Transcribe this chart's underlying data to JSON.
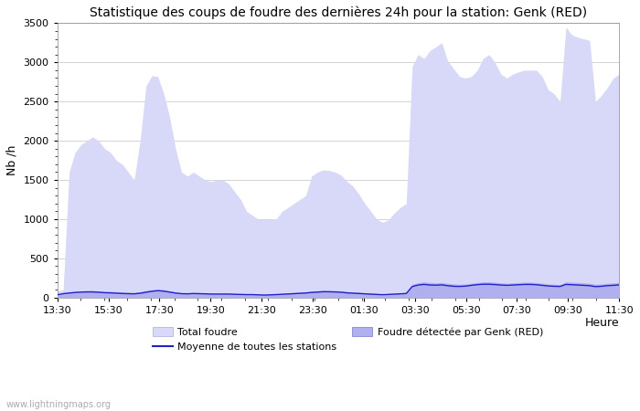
{
  "title": "Statistique des coups de foudre des dernières 24h pour la station: Genk (RED)",
  "ylabel": "Nb /h",
  "xlabel": "Heure",
  "watermark": "www.lightningmaps.org",
  "ylim": [
    0,
    3500
  ],
  "yticks": [
    0,
    500,
    1000,
    1500,
    2000,
    2500,
    3000,
    3500
  ],
  "xtick_labels": [
    "13:30",
    "15:30",
    "17:30",
    "19:30",
    "21:30",
    "23:30",
    "01:30",
    "03:30",
    "05:30",
    "07:30",
    "09:30",
    "11:30"
  ],
  "total_foudre_color": "#d8d8f8",
  "genk_color": "#b0b0ee",
  "moyenne_color": "#2222cc",
  "background_color": "#ffffff",
  "grid_color": "#cccccc",
  "title_fontsize": 10,
  "tick_fontsize": 8,
  "label_fontsize": 9,
  "x_values": [
    0,
    1,
    2,
    3,
    4,
    5,
    6,
    7,
    8,
    9,
    10,
    11,
    12,
    13,
    14,
    15,
    16,
    17,
    18,
    19,
    20,
    21,
    22,
    23,
    24,
    25,
    26,
    27,
    28,
    29,
    30,
    31,
    32,
    33,
    34,
    35,
    36,
    37,
    38,
    39,
    40,
    41,
    42,
    43,
    44,
    45,
    46,
    47,
    48,
    49,
    50,
    51,
    52,
    53,
    54,
    55,
    56,
    57,
    58,
    59,
    60,
    61,
    62,
    63,
    64,
    65,
    66,
    67,
    68,
    69,
    70,
    71,
    72,
    73,
    74,
    75,
    76,
    77,
    78,
    79,
    80,
    81,
    82,
    83,
    84,
    85,
    86,
    87,
    88,
    89,
    90,
    91,
    92,
    93,
    94,
    95
  ],
  "total_foudre_y": [
    80,
    100,
    1600,
    1850,
    1950,
    2000,
    2050,
    2000,
    1900,
    1850,
    1750,
    1700,
    1600,
    1500,
    2000,
    2700,
    2830,
    2820,
    2600,
    2300,
    1900,
    1600,
    1550,
    1600,
    1550,
    1500,
    1480,
    1500,
    1500,
    1450,
    1350,
    1250,
    1100,
    1050,
    1000,
    990,
    1000,
    1000,
    1100,
    1150,
    1200,
    1250,
    1300,
    1550,
    1600,
    1630,
    1620,
    1600,
    1560,
    1480,
    1420,
    1320,
    1200,
    1100,
    1000,
    960,
    990,
    1080,
    1150,
    1200,
    2950,
    3100,
    3050,
    3150,
    3200,
    3250,
    3020,
    2920,
    2820,
    2800,
    2820,
    2900,
    3050,
    3100,
    3000,
    2850,
    2800,
    2850,
    2880,
    2900,
    2900,
    2900,
    2820,
    2650,
    2600,
    2500,
    3450,
    3350,
    3320,
    3300,
    3280,
    2500,
    2580,
    2680,
    2800,
    2850
  ],
  "genk_y": [
    30,
    50,
    70,
    80,
    85,
    90,
    90,
    85,
    80,
    80,
    75,
    70,
    65,
    65,
    75,
    90,
    100,
    105,
    100,
    85,
    70,
    60,
    58,
    62,
    60,
    58,
    55,
    55,
    55,
    55,
    52,
    50,
    48,
    48,
    45,
    42,
    45,
    48,
    55,
    60,
    65,
    70,
    75,
    82,
    87,
    92,
    90,
    88,
    85,
    77,
    72,
    68,
    62,
    57,
    52,
    48,
    50,
    55,
    60,
    65,
    170,
    190,
    200,
    192,
    188,
    192,
    182,
    174,
    170,
    174,
    183,
    192,
    200,
    200,
    196,
    188,
    183,
    188,
    192,
    196,
    196,
    192,
    183,
    174,
    170,
    166,
    200,
    196,
    192,
    188,
    183,
    170,
    174,
    183,
    188,
    192
  ],
  "moyenne_y": [
    35,
    50,
    58,
    65,
    70,
    72,
    72,
    68,
    62,
    60,
    56,
    52,
    50,
    48,
    55,
    68,
    80,
    88,
    82,
    70,
    58,
    50,
    48,
    52,
    50,
    48,
    45,
    45,
    45,
    45,
    42,
    40,
    38,
    38,
    35,
    32,
    35,
    38,
    42,
    46,
    50,
    54,
    58,
    65,
    70,
    75,
    74,
    72,
    68,
    60,
    56,
    52,
    48,
    44,
    40,
    37,
    40,
    44,
    48,
    52,
    140,
    160,
    168,
    160,
    158,
    162,
    152,
    144,
    142,
    146,
    156,
    165,
    170,
    170,
    166,
    160,
    156,
    160,
    164,
    168,
    168,
    164,
    156,
    148,
    144,
    142,
    168,
    164,
    160,
    156,
    152,
    140,
    144,
    152,
    156,
    162
  ]
}
